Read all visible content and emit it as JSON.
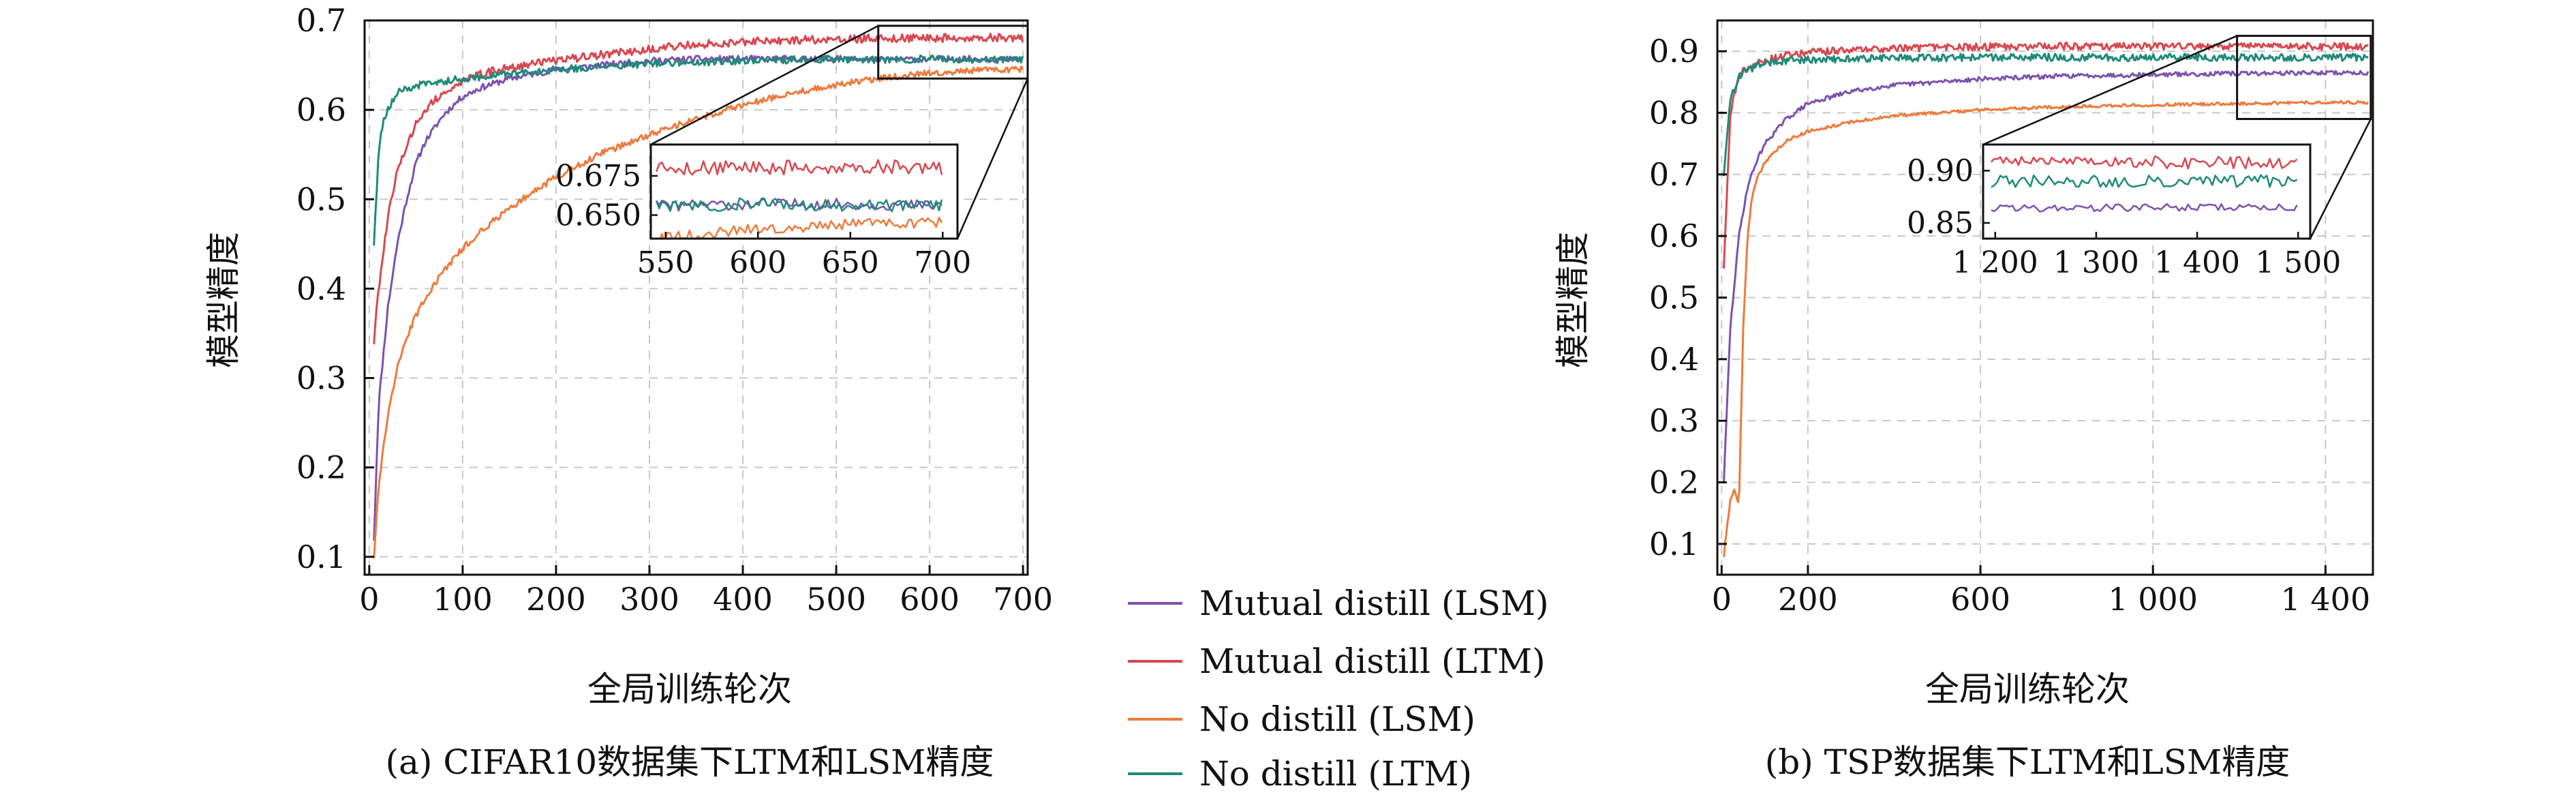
{
  "colors": {
    "lsm_mutual": "#7b52ae",
    "ltm_mutual": "#d9474f",
    "lsm_no": "#ee7a3b",
    "ltm_no": "#1f8a7a",
    "grid": "#c8c8c8",
    "axis": "#111111"
  },
  "legend": {
    "items": [
      {
        "label": "Mutual distill (LSM)",
        "color_key": "lsm_mutual"
      },
      {
        "label": "Mutual distill (LTM)",
        "color_key": "ltm_mutual"
      },
      {
        "label": "No distill (LSM)",
        "color_key": "lsm_no"
      },
      {
        "label": "No distill (LTM)",
        "color_key": "ltm_no"
      }
    ]
  },
  "chart_data": [
    {
      "id": "a",
      "type": "line",
      "caption": "(a) CIFAR10数据集下LTM和LSM精度",
      "xlabel": "全局训练轮次",
      "ylabel": "模型精度",
      "xlim": [
        -5,
        705
      ],
      "ylim": [
        0.08,
        0.7
      ],
      "xticks": [
        0,
        100,
        200,
        300,
        400,
        500,
        600,
        700
      ],
      "xtick_labels": [
        "0",
        "100",
        "200",
        "300",
        "400",
        "500",
        "600",
        "700"
      ],
      "yticks": [
        0.1,
        0.2,
        0.3,
        0.4,
        0.5,
        0.6,
        0.7
      ],
      "ytick_labels": [
        "0.1",
        "0.2",
        "0.3",
        "0.4",
        "0.5",
        "0.6",
        "0.7"
      ],
      "grid": true,
      "legend_position": "center between panels",
      "series": [
        {
          "color_key": "lsm_mutual",
          "x": [
            5,
            10,
            20,
            30,
            40,
            50,
            60,
            80,
            100,
            120,
            150,
            200,
            250,
            300,
            350,
            400,
            450,
            500,
            550,
            600,
            650,
            700
          ],
          "y": [
            0.12,
            0.27,
            0.38,
            0.45,
            0.5,
            0.54,
            0.565,
            0.595,
            0.615,
            0.625,
            0.635,
            0.645,
            0.65,
            0.655,
            0.657,
            0.657,
            0.657,
            0.657,
            0.656,
            0.657,
            0.657,
            0.656
          ]
        },
        {
          "color_key": "ltm_mutual",
          "x": [
            5,
            10,
            20,
            30,
            40,
            50,
            60,
            80,
            100,
            120,
            150,
            200,
            250,
            300,
            350,
            400,
            450,
            500,
            550,
            600,
            650,
            700
          ],
          "y": [
            0.34,
            0.4,
            0.48,
            0.53,
            0.56,
            0.585,
            0.6,
            0.62,
            0.632,
            0.64,
            0.648,
            0.655,
            0.662,
            0.668,
            0.673,
            0.676,
            0.678,
            0.679,
            0.68,
            0.68,
            0.681,
            0.68
          ]
        },
        {
          "color_key": "lsm_no",
          "x": [
            5,
            10,
            20,
            30,
            40,
            50,
            60,
            80,
            100,
            120,
            150,
            200,
            250,
            300,
            350,
            400,
            450,
            500,
            550,
            600,
            650,
            700
          ],
          "y": [
            0.1,
            0.18,
            0.26,
            0.31,
            0.345,
            0.37,
            0.39,
            0.42,
            0.445,
            0.465,
            0.49,
            0.525,
            0.552,
            0.572,
            0.59,
            0.605,
            0.618,
            0.628,
            0.636,
            0.641,
            0.644,
            0.645
          ]
        },
        {
          "color_key": "ltm_no",
          "x": [
            5,
            10,
            15,
            20,
            25,
            30,
            40,
            50,
            60,
            80,
            100,
            150,
            200,
            250,
            300,
            350,
            400,
            450,
            500,
            550,
            600,
            650,
            700
          ],
          "y": [
            0.45,
            0.55,
            0.59,
            0.6,
            0.61,
            0.62,
            0.623,
            0.626,
            0.63,
            0.632,
            0.635,
            0.64,
            0.645,
            0.648,
            0.652,
            0.653,
            0.655,
            0.656,
            0.657,
            0.656,
            0.657,
            0.656,
            0.656
          ]
        }
      ],
      "inset": {
        "xlim": [
          542,
          708
        ],
        "ylim": [
          0.635,
          0.695
        ],
        "xticks": [
          550,
          600,
          650,
          700
        ],
        "xtick_labels": [
          "550",
          "600",
          "650",
          "700"
        ],
        "yticks": [
          0.65,
          0.675
        ],
        "ytick_labels": [
          "0.650",
          "0.675"
        ],
        "zoom_source_x": [
          545,
          705
        ],
        "zoom_source_y": [
          0.635,
          0.694
        ]
      }
    },
    {
      "id": "b",
      "type": "line",
      "caption": "(b) TSP数据集下LTM和LSM精度",
      "xlabel": "全局训练轮次",
      "ylabel": "模型精度",
      "xlim": [
        -10,
        1510
      ],
      "ylim": [
        0.05,
        0.95
      ],
      "xticks": [
        0,
        200,
        600,
        1000,
        1400
      ],
      "xtick_labels": [
        "0",
        "200",
        "600",
        "1 000",
        "1 400"
      ],
      "yticks": [
        0.1,
        0.2,
        0.3,
        0.4,
        0.5,
        0.6,
        0.7,
        0.8,
        0.9
      ],
      "ytick_labels": [
        "0.1",
        "0.2",
        "0.3",
        "0.4",
        "0.5",
        "0.6",
        "0.7",
        "0.8",
        "0.9"
      ],
      "grid": true,
      "series": [
        {
          "color_key": "lsm_mutual",
          "x": [
            5,
            20,
            40,
            60,
            80,
            100,
            150,
            200,
            300,
            400,
            600,
            800,
            1000,
            1200,
            1400,
            1500
          ],
          "y": [
            0.2,
            0.45,
            0.6,
            0.68,
            0.72,
            0.75,
            0.79,
            0.815,
            0.835,
            0.845,
            0.855,
            0.86,
            0.862,
            0.864,
            0.865,
            0.865
          ]
        },
        {
          "color_key": "ltm_mutual",
          "x": [
            5,
            20,
            40,
            60,
            80,
            100,
            150,
            200,
            300,
            400,
            600,
            800,
            1000,
            1200,
            1400,
            1500
          ],
          "y": [
            0.55,
            0.8,
            0.86,
            0.875,
            0.88,
            0.885,
            0.893,
            0.898,
            0.902,
            0.905,
            0.907,
            0.908,
            0.908,
            0.908,
            0.908,
            0.908
          ]
        },
        {
          "color_key": "lsm_no",
          "x": [
            5,
            20,
            30,
            40,
            50,
            60,
            70,
            80,
            100,
            150,
            200,
            300,
            400,
            600,
            800,
            1000,
            1200,
            1400,
            1500
          ],
          "y": [
            0.08,
            0.17,
            0.19,
            0.16,
            0.45,
            0.6,
            0.66,
            0.69,
            0.72,
            0.755,
            0.77,
            0.785,
            0.795,
            0.805,
            0.81,
            0.813,
            0.815,
            0.817,
            0.817
          ]
        },
        {
          "color_key": "ltm_no",
          "x": [
            5,
            20,
            40,
            60,
            80,
            100,
            150,
            200,
            300,
            400,
            600,
            800,
            1000,
            1200,
            1400,
            1500
          ],
          "y": [
            0.7,
            0.82,
            0.86,
            0.87,
            0.875,
            0.88,
            0.884,
            0.886,
            0.888,
            0.889,
            0.89,
            0.89,
            0.89,
            0.89,
            0.89,
            0.89
          ]
        }
      ],
      "inset": {
        "xlim": [
          1188,
          1512
        ],
        "ylim": [
          0.835,
          0.925
        ],
        "xticks": [
          1200,
          1300,
          1400,
          1500
        ],
        "xtick_labels": [
          "1 200",
          "1 300",
          "1 400",
          "1 500"
        ],
        "yticks": [
          0.85,
          0.9
        ],
        "ytick_labels": [
          "0.85",
          "0.90"
        ],
        "zoom_source_x": [
          1195,
          1505
        ],
        "zoom_source_y": [
          0.79,
          0.925
        ]
      }
    }
  ]
}
